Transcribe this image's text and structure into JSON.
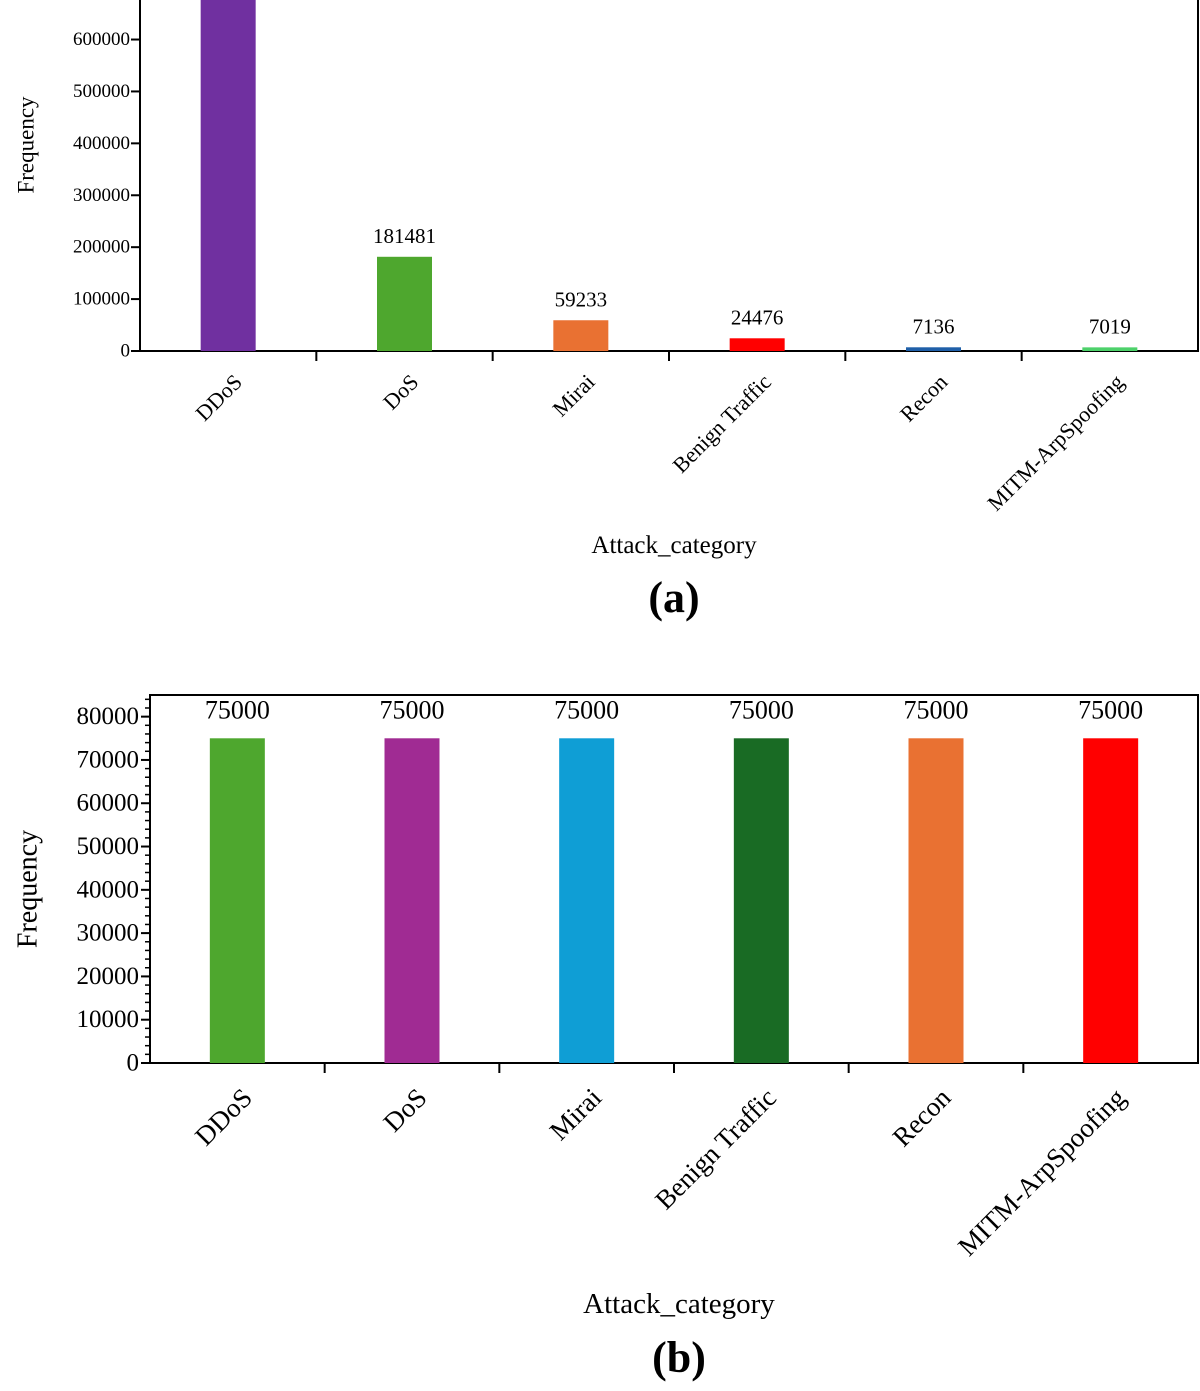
{
  "chart_data": [
    {
      "type": "bar",
      "panel_label": "(a)",
      "categories": [
        "DDoS",
        "DoS",
        "Mirai",
        "Benign Traffic",
        "Recon",
        "MITM-ArpSpoofing"
      ],
      "values": [
        null,
        181481,
        59233,
        24476,
        7136,
        7019
      ],
      "data_labels": [
        "",
        "181481",
        "59233",
        "24476",
        "7136",
        "7019"
      ],
      "colors": [
        "#7030a0",
        "#4ea72e",
        "#e97132",
        "#ff0000",
        "#1f5fa8",
        "#4dd16a"
      ],
      "xlabel": "Attack_category",
      "ylabel": "Frequency",
      "ylim": [
        0,
        680000
      ],
      "yticks": [
        0,
        100000,
        200000,
        300000,
        400000,
        500000,
        600000
      ],
      "ytick_labels": [
        "0",
        "100000",
        "200000",
        "300000",
        "400000",
        "500000",
        "600000"
      ],
      "note_clipped": "DDoS bar extends beyond the top of the visible axis"
    },
    {
      "type": "bar",
      "panel_label": "(b)",
      "categories": [
        "DDoS",
        "DoS",
        "Mirai",
        "Benign Traffic",
        "Recon",
        "MITM-ArpSpoofing"
      ],
      "values": [
        75000,
        75000,
        75000,
        75000,
        75000,
        75000
      ],
      "data_labels": [
        "75000",
        "75000",
        "75000",
        "75000",
        "75000",
        "75000"
      ],
      "colors": [
        "#4ea72e",
        "#a02b93",
        "#0f9ed5",
        "#196b24",
        "#e97132",
        "#ff0000"
      ],
      "xlabel": "Attack_category",
      "ylabel": "Frequency",
      "ylim": [
        0,
        85000
      ],
      "yticks": [
        0,
        10000,
        20000,
        30000,
        40000,
        50000,
        60000,
        70000,
        80000
      ],
      "ytick_labels": [
        "0",
        "10000",
        "20000",
        "30000",
        "40000",
        "50000",
        "60000",
        "70000",
        "80000"
      ]
    }
  ]
}
